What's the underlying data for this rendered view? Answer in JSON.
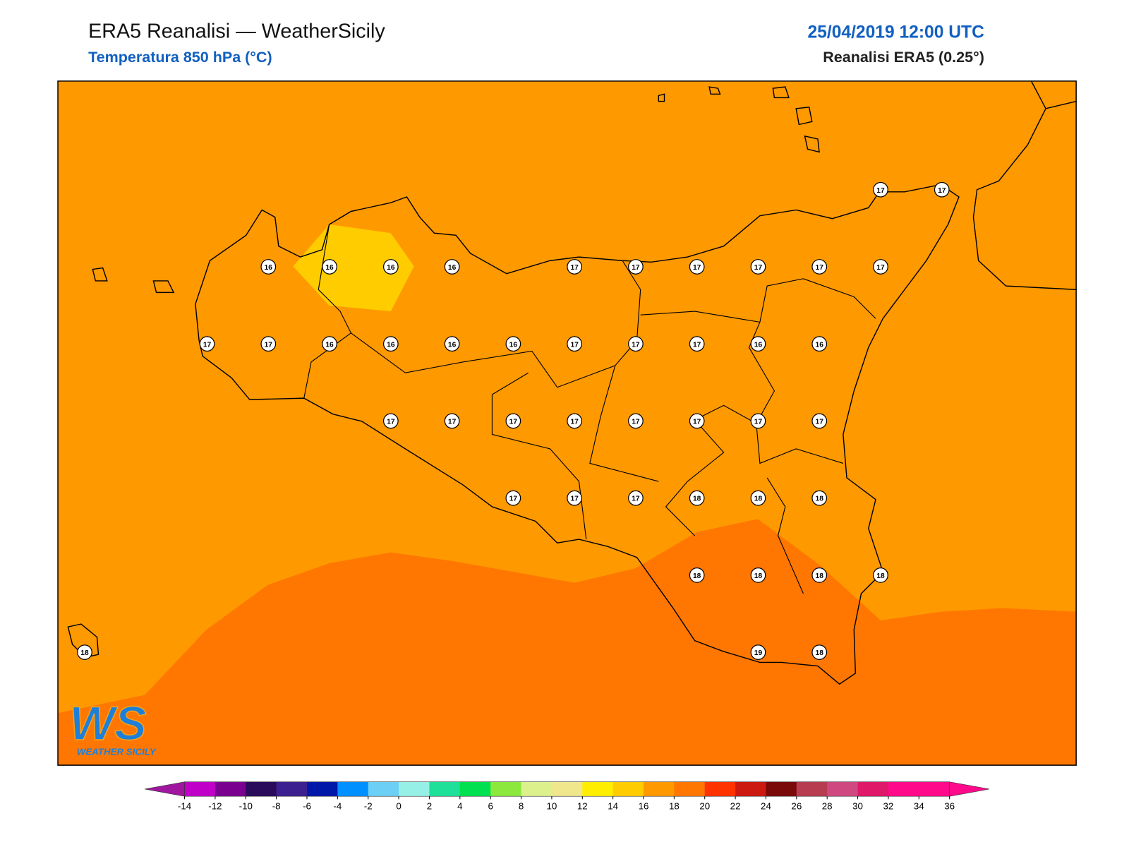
{
  "header": {
    "title": "ERA5 Reanalisi — WeatherSicily",
    "subtitle": "Temperatura 850 hPa (°C)",
    "datetime": "25/04/2019 12:00 UTC",
    "source": "Reanalisi ERA5 (0.25°)"
  },
  "logo": {
    "initials": "WS",
    "name": "WEATHER SICILY"
  },
  "stations": [
    [
      null,
      null,
      null,
      null,
      null,
      null,
      null,
      null,
      null,
      null,
      null,
      null,
      null,
      17,
      17
    ],
    [
      null,
      null,
      null,
      16,
      16,
      16,
      16,
      null,
      17,
      17,
      17,
      17,
      17,
      17,
      null
    ],
    [
      null,
      null,
      17,
      17,
      16,
      16,
      16,
      16,
      17,
      17,
      17,
      16,
      16,
      null,
      null
    ],
    [
      null,
      null,
      null,
      null,
      null,
      17,
      17,
      17,
      17,
      17,
      17,
      17,
      17,
      null,
      null
    ],
    [
      null,
      null,
      null,
      null,
      null,
      null,
      null,
      17,
      17,
      17,
      18,
      18,
      18,
      null,
      null
    ],
    [
      null,
      null,
      null,
      null,
      null,
      null,
      null,
      null,
      null,
      null,
      18,
      18,
      18,
      18,
      null
    ],
    [
      18,
      null,
      null,
      null,
      null,
      null,
      null,
      null,
      null,
      null,
      null,
      19,
      18,
      null,
      null
    ]
  ],
  "colorbar": {
    "ticks": [
      -14,
      -12,
      -10,
      -8,
      -6,
      -4,
      -2,
      0,
      2,
      4,
      6,
      8,
      10,
      12,
      14,
      16,
      18,
      20,
      22,
      24,
      26,
      28,
      30,
      32,
      34,
      36
    ],
    "under": "#a0169f",
    "over": "#ff0a8a",
    "colors": [
      "#c000c8",
      "#7a0090",
      "#2a0a5a",
      "#3c2090",
      "#0018a8",
      "#0090ff",
      "#6ccff6",
      "#96f0e6",
      "#1ee098",
      "#00e050",
      "#8ce83c",
      "#dcf08c",
      "#f0e68c",
      "#ffee00",
      "#ffcc00",
      "#ff9900",
      "#ff7700",
      "#ff3300",
      "#cc1a10",
      "#7a0a0a",
      "#b83c50",
      "#d04880",
      "#e0186a",
      "#ff0a8a",
      "#ff0a8a"
    ]
  }
}
